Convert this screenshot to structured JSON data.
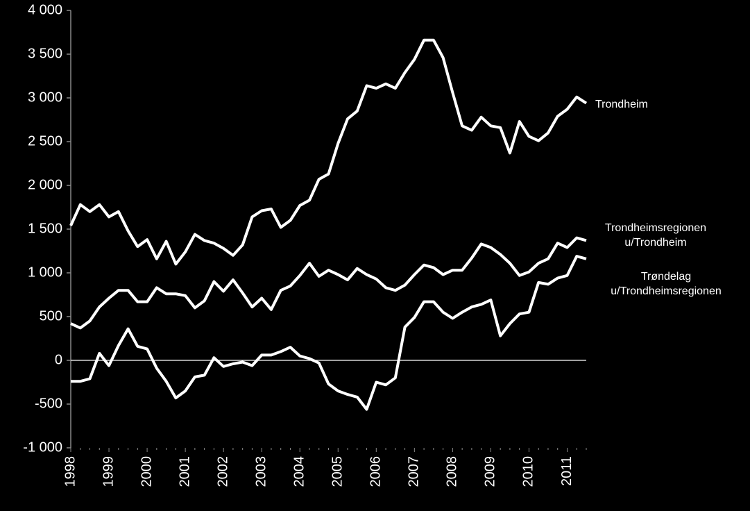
{
  "chart_data": {
    "type": "line",
    "categories": [
      "1998",
      null,
      null,
      null,
      "1999",
      null,
      null,
      null,
      "2000",
      null,
      null,
      null,
      "2001",
      null,
      null,
      null,
      "2002",
      null,
      null,
      null,
      "2003",
      null,
      null,
      null,
      "2004",
      null,
      null,
      null,
      "2005",
      null,
      null,
      null,
      "2006",
      null,
      null,
      null,
      "2007",
      null,
      null,
      null,
      "2008",
      null,
      null,
      null,
      "2009",
      null,
      null,
      null,
      "2010",
      null,
      null,
      null,
      "2011",
      null,
      null
    ],
    "series": [
      {
        "name": "Trondheim",
        "color": "#ffffff",
        "values": [
          1540,
          1780,
          1700,
          1780,
          1640,
          1700,
          1480,
          1300,
          1380,
          1160,
          1360,
          1100,
          1240,
          1440,
          1370,
          1340,
          1280,
          1200,
          1320,
          1640,
          1710,
          1730,
          1520,
          1600,
          1770,
          1830,
          2070,
          2130,
          2480,
          2760,
          2850,
          3140,
          3110,
          3160,
          3110,
          3290,
          3440,
          3660,
          3660,
          3460,
          3060,
          2680,
          2630,
          2780,
          2680,
          2660,
          2370,
          2730,
          2560,
          2510,
          2600,
          2790,
          2870,
          3010,
          2940
        ]
      },
      {
        "name": "Trondheimsregionen u/Trondheim",
        "color": "#ffffff",
        "values": [
          420,
          370,
          450,
          610,
          710,
          800,
          800,
          670,
          670,
          830,
          760,
          760,
          740,
          600,
          680,
          900,
          790,
          920,
          770,
          610,
          710,
          580,
          800,
          850,
          970,
          1110,
          960,
          1030,
          980,
          920,
          1050,
          980,
          930,
          830,
          800,
          860,
          980,
          1090,
          1060,
          980,
          1030,
          1030,
          1170,
          1330,
          1290,
          1210,
          1110,
          970,
          1010,
          1110,
          1160,
          1340,
          1290,
          1400,
          1370
        ]
      },
      {
        "name": "Trøndelag u/Trondheimsregionen",
        "color": "#ffffff",
        "values": [
          -240,
          -240,
          -210,
          80,
          -60,
          170,
          360,
          160,
          130,
          -90,
          -240,
          -430,
          -350,
          -190,
          -170,
          30,
          -70,
          -40,
          -20,
          -60,
          60,
          60,
          100,
          150,
          50,
          20,
          -30,
          -270,
          -350,
          -390,
          -420,
          -560,
          -250,
          -280,
          -200,
          380,
          490,
          670,
          670,
          550,
          480,
          550,
          610,
          640,
          690,
          280,
          420,
          530,
          550,
          890,
          870,
          940,
          970,
          1190,
          1160
        ]
      }
    ],
    "ylim": [
      -1000,
      4000
    ],
    "yticks": [
      {
        "value": -1000,
        "label": "-1 000"
      },
      -500,
      0,
      500,
      {
        "value": 1000,
        "label": "1 000"
      },
      {
        "value": 1500,
        "label": "1 500"
      },
      {
        "value": 2000,
        "label": "2 000"
      },
      {
        "value": 2500,
        "label": "2 500"
      },
      {
        "value": 3000,
        "label": "3 000"
      },
      {
        "value": 3500,
        "label": "3 500"
      },
      {
        "value": 4000,
        "label": "4 000"
      }
    ]
  }
}
